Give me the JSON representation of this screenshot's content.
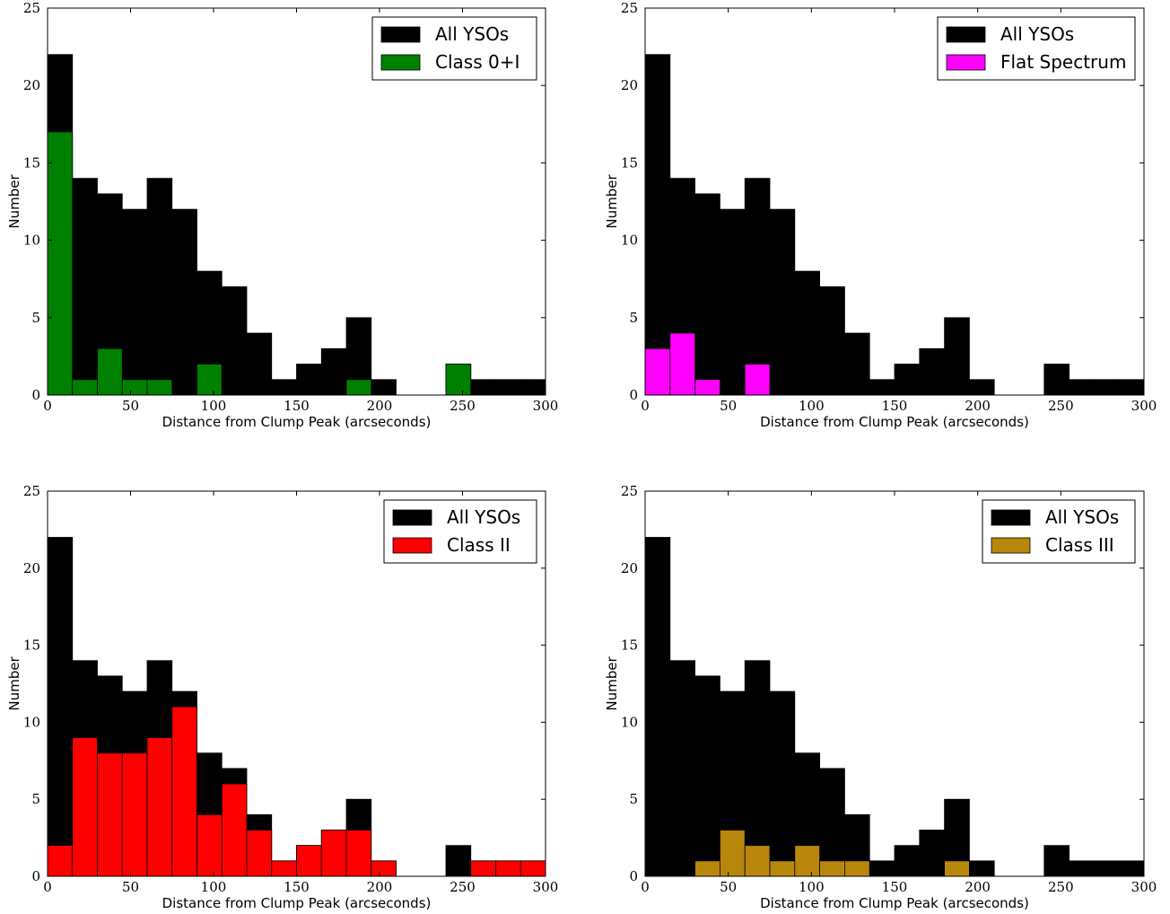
{
  "chart_data": [
    {
      "type": "bar",
      "bin_width": 15,
      "bin_starts": [
        0,
        15,
        30,
        45,
        60,
        75,
        90,
        105,
        120,
        135,
        150,
        165,
        180,
        195,
        210,
        225,
        240,
        255,
        270,
        285
      ],
      "xlabel": "Distance from Clump Peak (arcseconds)",
      "ylabel": "Number",
      "xlim": [
        0,
        300
      ],
      "ylim": [
        0,
        25
      ],
      "xticks": [
        0,
        50,
        100,
        150,
        200,
        250,
        300
      ],
      "yticks": [
        0,
        5,
        10,
        15,
        20,
        25
      ],
      "legend_position": "top-right",
      "series": [
        {
          "name": "All YSOs",
          "color": "#000000",
          "values": [
            22,
            14,
            13,
            12,
            14,
            12,
            8,
            7,
            4,
            1,
            2,
            3,
            5,
            1,
            0,
            0,
            2,
            1,
            1,
            1
          ]
        },
        {
          "name": "Class 0+I",
          "color": "#008000",
          "values": [
            17,
            1,
            3,
            1,
            1,
            0,
            2,
            0,
            0,
            0,
            0,
            0,
            1,
            0,
            0,
            0,
            2,
            0,
            0,
            0
          ]
        }
      ]
    },
    {
      "type": "bar",
      "bin_width": 15,
      "bin_starts": [
        0,
        15,
        30,
        45,
        60,
        75,
        90,
        105,
        120,
        135,
        150,
        165,
        180,
        195,
        210,
        225,
        240,
        255,
        270,
        285
      ],
      "xlabel": "Distance from Clump Peak (arcseconds)",
      "ylabel": "Number",
      "xlim": [
        0,
        300
      ],
      "ylim": [
        0,
        25
      ],
      "xticks": [
        0,
        50,
        100,
        150,
        200,
        250,
        300
      ],
      "yticks": [
        0,
        5,
        10,
        15,
        20,
        25
      ],
      "legend_position": "top-right",
      "series": [
        {
          "name": "All YSOs",
          "color": "#000000",
          "values": [
            22,
            14,
            13,
            12,
            14,
            12,
            8,
            7,
            4,
            1,
            2,
            3,
            5,
            1,
            0,
            0,
            2,
            1,
            1,
            1
          ]
        },
        {
          "name": "Flat Spectrum",
          "color": "#ff00ff",
          "values": [
            3,
            4,
            1,
            0,
            2,
            0,
            0,
            0,
            0,
            0,
            0,
            0,
            0,
            0,
            0,
            0,
            0,
            0,
            0,
            0
          ]
        }
      ]
    },
    {
      "type": "bar",
      "bin_width": 15,
      "bin_starts": [
        0,
        15,
        30,
        45,
        60,
        75,
        90,
        105,
        120,
        135,
        150,
        165,
        180,
        195,
        210,
        225,
        240,
        255,
        270,
        285
      ],
      "xlabel": "Distance from Clump Peak (arcseconds)",
      "ylabel": "Number",
      "xlim": [
        0,
        300
      ],
      "ylim": [
        0,
        25
      ],
      "xticks": [
        0,
        50,
        100,
        150,
        200,
        250,
        300
      ],
      "yticks": [
        0,
        5,
        10,
        15,
        20,
        25
      ],
      "legend_position": "top-right",
      "series": [
        {
          "name": "All YSOs",
          "color": "#000000",
          "values": [
            22,
            14,
            13,
            12,
            14,
            12,
            8,
            7,
            4,
            1,
            2,
            3,
            5,
            1,
            0,
            0,
            2,
            1,
            1,
            1
          ]
        },
        {
          "name": "Class II",
          "color": "#ff0000",
          "values": [
            2,
            9,
            8,
            8,
            9,
            11,
            4,
            6,
            3,
            1,
            2,
            3,
            3,
            1,
            0,
            0,
            0,
            1,
            1,
            1
          ]
        }
      ]
    },
    {
      "type": "bar",
      "bin_width": 15,
      "bin_starts": [
        0,
        15,
        30,
        45,
        60,
        75,
        90,
        105,
        120,
        135,
        150,
        165,
        180,
        195,
        210,
        225,
        240,
        255,
        270,
        285
      ],
      "xlabel": "Distance from Clump Peak (arcseconds)",
      "ylabel": "Number",
      "xlim": [
        0,
        300
      ],
      "ylim": [
        0,
        25
      ],
      "xticks": [
        0,
        50,
        100,
        150,
        200,
        250,
        300
      ],
      "yticks": [
        0,
        5,
        10,
        15,
        20,
        25
      ],
      "legend_position": "top-right",
      "series": [
        {
          "name": "All YSOs",
          "color": "#000000",
          "values": [
            22,
            14,
            13,
            12,
            14,
            12,
            8,
            7,
            4,
            1,
            2,
            3,
            5,
            1,
            0,
            0,
            2,
            1,
            1,
            1
          ]
        },
        {
          "name": "Class III",
          "color": "#b8860b",
          "values": [
            0,
            0,
            1,
            3,
            2,
            1,
            2,
            1,
            1,
            0,
            0,
            0,
            1,
            0,
            0,
            0,
            0,
            0,
            0,
            0
          ]
        }
      ]
    }
  ]
}
